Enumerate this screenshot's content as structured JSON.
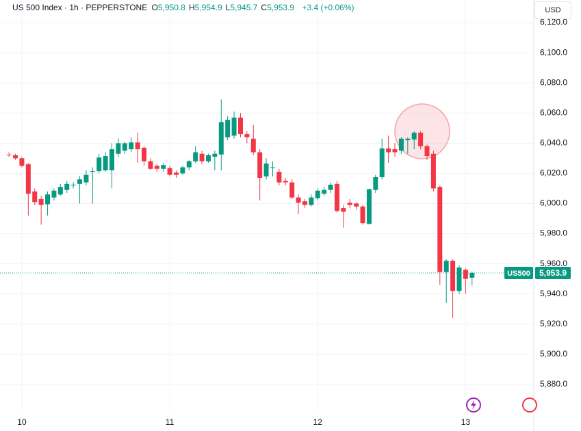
{
  "chart_data": {
    "type": "candlestick",
    "symbol": "US 500 Index · 1h · PEPPERSTONE",
    "ohlc_header": [
      {
        "label": "O",
        "value": "5,950.8"
      },
      {
        "label": "H",
        "value": "5,954.9"
      },
      {
        "label": "L",
        "value": "5,945.7"
      },
      {
        "label": "C",
        "value": "5,953.9"
      }
    ],
    "change": "+3.4 (+0.06%)",
    "currency": "USD",
    "ticker_tag": "US500",
    "last_price": {
      "value": 5953.9,
      "label": "5,953.9"
    },
    "up_color": "#089981",
    "down_color": "#f23645",
    "grid": true,
    "xlim": [
      -1.4,
      81.6
    ],
    "xticks": [
      {
        "value": 2,
        "label": "10"
      },
      {
        "value": 25,
        "label": "11"
      },
      {
        "value": 48,
        "label": "12"
      },
      {
        "value": 71,
        "label": "13"
      }
    ],
    "ylim": [
      5862.7,
      6135
    ],
    "yticks": [
      {
        "value": 5880,
        "label": "5,880.0"
      },
      {
        "value": 5900,
        "label": "5,900.0"
      },
      {
        "value": 5920,
        "label": "5,920.0"
      },
      {
        "value": 5940,
        "label": "5,940.0"
      },
      {
        "value": 5960,
        "label": "5,960.0"
      },
      {
        "value": 5980,
        "label": "5,980.0"
      },
      {
        "value": 6000,
        "label": "6,000.0"
      },
      {
        "value": 6020,
        "label": "6,020.0"
      },
      {
        "value": 6040,
        "label": "6,040.0"
      },
      {
        "value": 6060,
        "label": "6,060.0"
      },
      {
        "value": 6080,
        "label": "6,080.0"
      },
      {
        "value": 6100,
        "label": "6,100.0"
      },
      {
        "value": 6120,
        "label": "6,120.0"
      }
    ],
    "open": [
      6032.4,
      6032,
      6030,
      6026,
      6008,
      6003,
      5999.5,
      6004,
      6006,
      6009,
      6012,
      6013,
      6014,
      6021,
      6021.5,
      6022,
      6022,
      6033,
      6035,
      6036,
      6040.5,
      6037,
      6028,
      6025,
      6023,
      6023.5,
      6020.5,
      6020,
      6024,
      6028,
      6033,
      6028,
      6031,
      6032.5,
      6044,
      6045,
      6057,
      6046,
      6043,
      6034,
      6018,
      6023.5,
      6021,
      6015,
      6014,
      6004,
      6001.5,
      5999,
      6003.5,
      6006.5,
      6009,
      6013,
      5997,
      6000.5,
      6000,
      5998,
      5986.5,
      6009,
      6017.5,
      6036.5,
      6036,
      6035,
      6042,
      6042.5,
      6047,
      6038,
      6033,
      6011,
      5954.5,
      5962,
      5942,
      5956,
      5950.8
    ],
    "high": [
      6034,
      6033,
      6031,
      6027,
      6010,
      6005,
      6008,
      6010,
      6013,
      6015,
      6014,
      6018,
      6022,
      6024,
      6033,
      6034,
      6040,
      6043,
      6041,
      6044,
      6047,
      6038,
      6030,
      6026,
      6027,
      6025,
      6022,
      6025,
      6029,
      6038,
      6035,
      6033,
      6035,
      6069,
      6058,
      6061,
      6060,
      6048,
      6052,
      6036,
      6030,
      6028,
      6023,
      6017,
      6016,
      6006,
      6003,
      6006,
      6010,
      6011,
      6014,
      6015,
      5999,
      6003,
      6001,
      5999,
      6010,
      6019,
      6043,
      6045,
      6040,
      6044,
      6044,
      6048,
      6048,
      6039,
      6035,
      6012,
      5963,
      5963,
      5959,
      5957,
      5954.9
    ],
    "low": [
      6031,
      6029,
      6024,
      5992,
      5999,
      5986,
      5992,
      6002,
      6005,
      6007,
      6010,
      6000,
      6012,
      6000,
      6020,
      6021,
      6010,
      6031,
      6033,
      6034,
      6027,
      6025,
      6022,
      6021,
      6021,
      6018,
      6017,
      6019,
      6022,
      6027,
      6026,
      6027,
      6022,
      6022,
      6042,
      6043,
      6044,
      6040,
      6032,
      6002,
      6016,
      6018,
      6012,
      6012,
      6003,
      5993,
      5997,
      5998,
      6002,
      6005,
      6007,
      5994,
      5984,
      5997,
      5996,
      5986,
      5986,
      6007,
      6016,
      6027,
      6031,
      6033,
      6033,
      6036,
      6036,
      6029,
      6008,
      5946,
      5934,
      5924,
      5940,
      5940,
      5945.7
    ],
    "close": [
      6032,
      6030,
      6025,
      6006.5,
      6001,
      5999,
      6006,
      6008.5,
      6011,
      6013,
      6012.5,
      6016,
      6019,
      6021.5,
      6030.5,
      6031.5,
      6036,
      6040,
      6040,
      6040.5,
      6036,
      6028,
      6023,
      6023,
      6025.5,
      6019,
      6019,
      6024,
      6028,
      6034,
      6028,
      6032,
      6033,
      6054,
      6055.5,
      6057,
      6046,
      6044,
      6034,
      6017,
      6026.5,
      6024,
      6014,
      6014,
      6004,
      6000.5,
      5999,
      6004,
      6008.5,
      6009,
      6012.5,
      5995,
      5994.5,
      5999,
      5998,
      5987,
      6009.5,
      6017.5,
      6036.5,
      6034,
      6034,
      6043,
      6043,
      6047,
      6038,
      6031.5,
      6010,
      5954.5,
      5962,
      5942,
      5957.5,
      5950,
      5953.9
    ]
  }
}
